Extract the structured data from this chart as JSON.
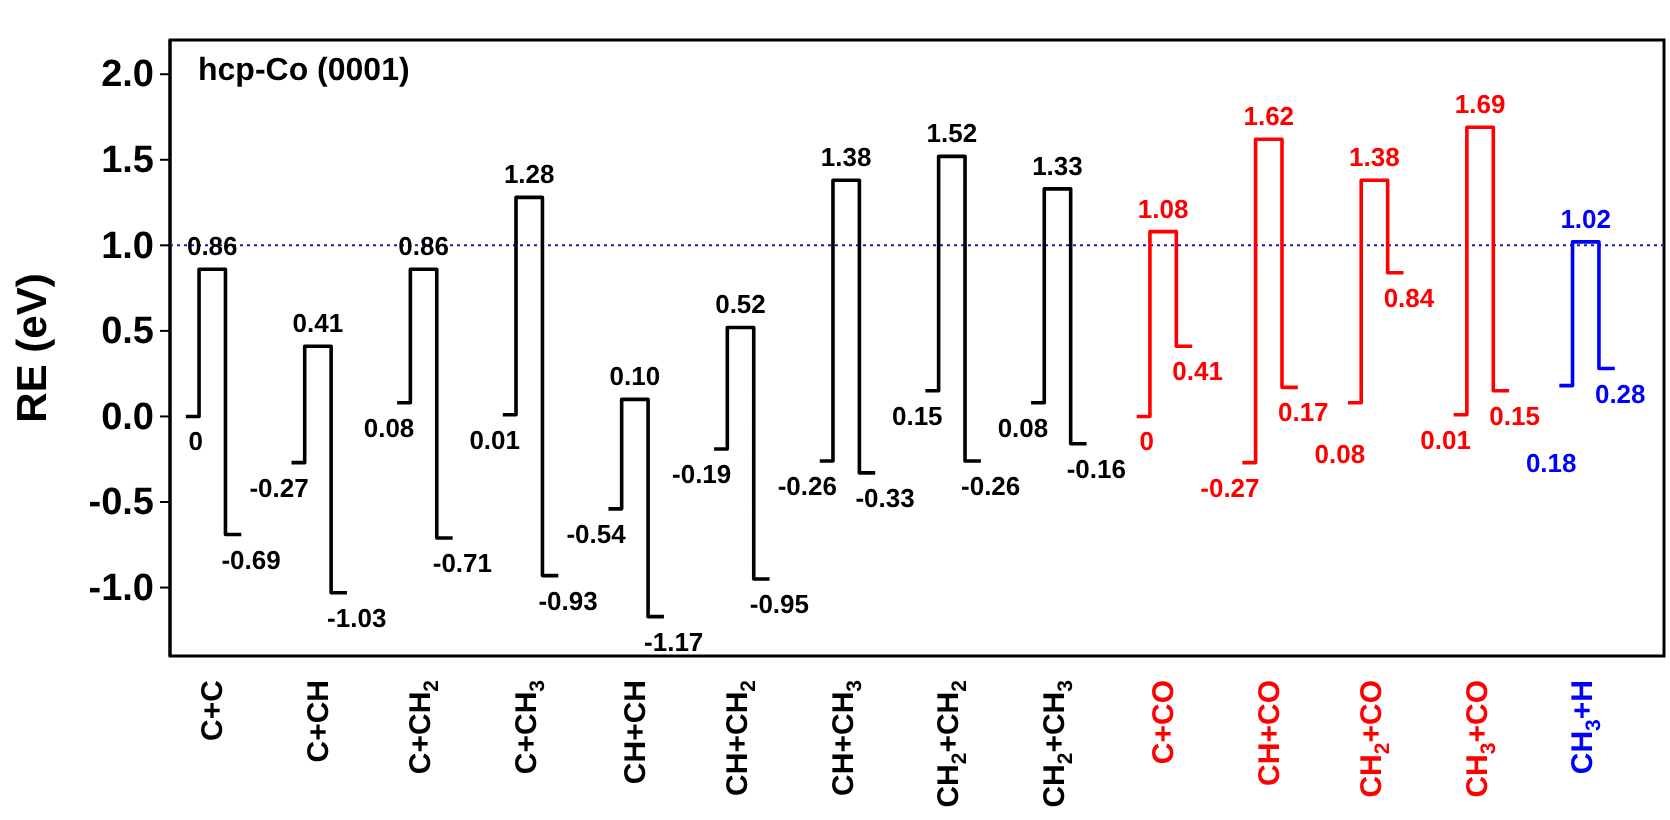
{
  "chart_data": {
    "type": "step",
    "title": "hcp-Co (0001)",
    "ylabel": "RE (eV)",
    "marker": "none",
    "line_style": "solid",
    "categories": [
      null,
      "C+C",
      null,
      null,
      null,
      "C+CH",
      null,
      null,
      null,
      "C+CH$_{2}$",
      null,
      null,
      null,
      "C+CH$_{3}$",
      null,
      null,
      null,
      "CH+CH",
      null,
      null,
      null,
      "CH+CH$_{2}$",
      null,
      null,
      null,
      "CH+CH$_{3}$",
      null,
      null,
      null,
      "CH$_{2}$+CH$_{2}$",
      null,
      null,
      null,
      "CH$_{2}$+CH$_{3}$",
      null,
      null,
      null,
      "C+CO",
      null,
      null,
      null,
      "CH+CO",
      null,
      null,
      null,
      "CH$_{2}$+CO",
      null,
      null,
      null,
      "CH$_{3}$+CO",
      null,
      null,
      null,
      "CH$_{3}$+H",
      null
    ],
    "ylim": [
      -1.4,
      2.2
    ],
    "yticks": [
      {
        "value": -1,
        "label": "-1.0"
      },
      {
        "value": -0.5,
        "label": "-0.5"
      },
      {
        "value": 0,
        "label": "0.0"
      },
      {
        "value": 0.5,
        "label": "0.5"
      },
      {
        "value": 1,
        "label": "1.0"
      },
      {
        "value": 1.5,
        "label": "1.5"
      },
      {
        "value": 2,
        "label": "2.0"
      }
    ],
    "series": [
      {
        "color": "#000000",
        "values": [
          0,
          0.86,
          -0.69,
          null,
          -0.27,
          0.41,
          -1.03,
          null,
          0.08,
          0.86,
          -0.71,
          null,
          0.01,
          1.28,
          -0.93,
          null,
          -0.54,
          0.1,
          -1.17,
          null,
          -0.19,
          0.52,
          -0.95,
          null,
          -0.26,
          1.38,
          -0.33,
          null,
          0.15,
          1.52,
          -0.26,
          null,
          0.08,
          1.33,
          -0.16,
          null,
          null,
          null,
          null,
          null,
          null,
          null,
          null,
          null,
          null,
          null,
          null,
          null,
          null,
          null,
          null,
          null,
          null,
          null,
          null
        ],
        "value_labels": [
          "0",
          "0.86",
          "-0.69",
          null,
          "-0.27",
          "0.41",
          "-1.03",
          null,
          "0.08",
          "0.86",
          "-0.71",
          null,
          "0.01",
          "1.28",
          "-0.93",
          null,
          "-0.54",
          "0.10",
          "-1.17",
          null,
          "-0.19",
          "0.52",
          "-0.95",
          null,
          "-0.26",
          "1.38",
          "-0.33",
          null,
          "0.15",
          "1.52",
          "-0.26",
          null,
          "0.08",
          "1.33",
          "-0.16",
          null,
          null,
          null,
          null,
          null,
          null,
          null,
          null,
          null,
          null,
          null,
          null,
          null,
          null,
          null,
          null,
          null,
          null,
          null,
          null
        ]
      },
      {
        "color": "#ff0000",
        "values": [
          null,
          null,
          null,
          null,
          null,
          null,
          null,
          null,
          null,
          null,
          null,
          null,
          null,
          null,
          null,
          null,
          null,
          null,
          null,
          null,
          null,
          null,
          null,
          null,
          null,
          null,
          null,
          null,
          null,
          null,
          null,
          null,
          null,
          null,
          null,
          null,
          0,
          1.08,
          0.41,
          null,
          -0.27,
          1.62,
          0.17,
          null,
          0.08,
          1.38,
          0.84,
          null,
          0.01,
          1.69,
          0.15,
          null,
          null,
          null,
          null
        ],
        "value_labels": [
          null,
          null,
          null,
          null,
          null,
          null,
          null,
          null,
          null,
          null,
          null,
          null,
          null,
          null,
          null,
          null,
          null,
          null,
          null,
          null,
          null,
          null,
          null,
          null,
          null,
          null,
          null,
          null,
          null,
          null,
          null,
          null,
          null,
          null,
          null,
          null,
          "0",
          "1.08",
          "0.41",
          null,
          "-0.27",
          "1.62",
          "0.17",
          null,
          "0.08",
          "1.38",
          "0.84",
          null,
          "0.01",
          "1.69",
          "0.15",
          null,
          null,
          null,
          null
        ]
      },
      {
        "color": "#0000ff",
        "values": [
          null,
          null,
          null,
          null,
          null,
          null,
          null,
          null,
          null,
          null,
          null,
          null,
          null,
          null,
          null,
          null,
          null,
          null,
          null,
          null,
          null,
          null,
          null,
          null,
          null,
          null,
          null,
          null,
          null,
          null,
          null,
          null,
          null,
          null,
          null,
          null,
          null,
          null,
          null,
          null,
          null,
          null,
          null,
          null,
          null,
          null,
          null,
          null,
          null,
          null,
          null,
          null,
          0.18,
          1.02,
          0.28
        ],
        "value_labels": [
          null,
          null,
          null,
          null,
          null,
          null,
          null,
          null,
          null,
          null,
          null,
          null,
          null,
          null,
          null,
          null,
          null,
          null,
          null,
          null,
          null,
          null,
          null,
          null,
          null,
          null,
          null,
          null,
          null,
          null,
          null,
          null,
          null,
          null,
          null,
          null,
          null,
          null,
          null,
          null,
          null,
          null,
          null,
          null,
          null,
          null,
          null,
          null,
          null,
          null,
          null,
          null,
          "0.18",
          "1.02",
          "0.28"
        ]
      }
    ],
    "ref_lines": [
      {
        "axis": "y",
        "value": 1,
        "color": "#1a1aa0",
        "line_style": "dotted"
      }
    ]
  }
}
